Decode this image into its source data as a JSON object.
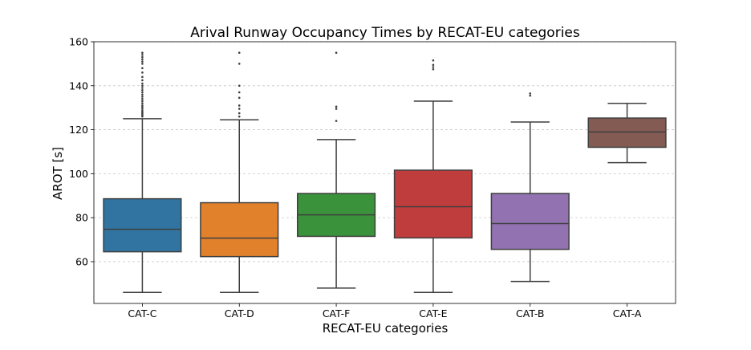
{
  "chart_data": {
    "type": "box",
    "title": "Arival Runway Occupancy Times by RECAT-EU categories",
    "xlabel": "RECAT-EU categories",
    "ylabel": "AROT [s]",
    "ylim": [
      41,
      160
    ],
    "yticks": [
      60,
      80,
      100,
      120,
      140,
      160
    ],
    "grid": "horizontal-dashed",
    "categories": [
      "CAT-C",
      "CAT-D",
      "CAT-F",
      "CAT-E",
      "CAT-B",
      "CAT-A"
    ],
    "series": [
      {
        "category": "CAT-C",
        "color": "#3274a1",
        "whisker_low": 46,
        "q1": 64.5,
        "median": 74.7,
        "q3": 88.6,
        "whisker_high": 125,
        "outliers": [
          126,
          126.5,
          127,
          127.5,
          128,
          128.7,
          129.5,
          130.3,
          131,
          132,
          133,
          134,
          135,
          136,
          137,
          138,
          139,
          140,
          141,
          142.5,
          144,
          146,
          148,
          150,
          151,
          152,
          153,
          154,
          155
        ]
      },
      {
        "category": "CAT-D",
        "color": "#e1812c",
        "whisker_low": 46,
        "q1": 62.3,
        "median": 70.7,
        "q3": 86.8,
        "whisker_high": 124.5,
        "outliers": [
          126,
          127.5,
          129.5,
          131,
          134.5,
          137,
          140,
          150,
          155
        ]
      },
      {
        "category": "CAT-F",
        "color": "#3a923a",
        "whisker_low": 48,
        "q1": 71.5,
        "median": 81.3,
        "q3": 91,
        "whisker_high": 115.5,
        "outliers": [
          124,
          129.5,
          130.5,
          155
        ]
      },
      {
        "category": "CAT-E",
        "color": "#c03d3e",
        "whisker_low": 46,
        "q1": 70.8,
        "median": 85,
        "q3": 101.6,
        "whisker_high": 133,
        "outliers": [
          147.5,
          148.5,
          149.5,
          151.5
        ]
      },
      {
        "category": "CAT-B",
        "color": "#9372b2",
        "whisker_low": 51,
        "q1": 65.6,
        "median": 77.3,
        "q3": 91,
        "whisker_high": 123.5,
        "outliers": [
          135.5,
          136.5
        ]
      },
      {
        "category": "CAT-A",
        "color": "#845b53",
        "whisker_low": 105,
        "q1": 112,
        "median": 119,
        "q3": 125.3,
        "whisker_high": 132,
        "outliers": []
      }
    ]
  }
}
